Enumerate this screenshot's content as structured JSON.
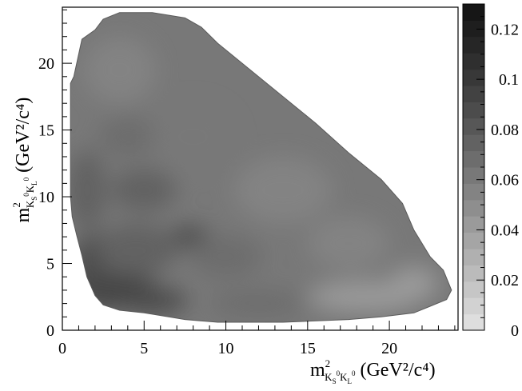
{
  "chart_data": {
    "type": "heatmap",
    "title": "",
    "xlabel": {
      "base": "m",
      "sup": "2",
      "sub1": "K",
      "sub1s": "S",
      "sub1sup": "0",
      "sub2": "K",
      "sub2s": "L",
      "sub2sup": "0",
      "unit": "(GeV²/c⁴)"
    },
    "ylabel": {
      "base": "m",
      "sup": "2",
      "sub1": "K",
      "sub1s": "S",
      "sub1sup": "0",
      "sub2": "K",
      "sub2s": "L",
      "sub2sup": "0",
      "unit": "(GeV²/c⁴)"
    },
    "xlim": [
      0,
      24.2
    ],
    "ylim": [
      0,
      24.2
    ],
    "x_ticks": [
      "0",
      "5",
      "10",
      "15",
      "20"
    ],
    "y_ticks": [
      "0",
      "5",
      "10",
      "15",
      "20"
    ],
    "colorbar": {
      "range": [
        0,
        0.13
      ],
      "ticks": [
        "0",
        "0.02",
        "0.04",
        "0.06",
        "0.08",
        "0.1",
        "0.12"
      ],
      "levels": 20,
      "colors": [
        "#dedede",
        "#d2d2d2",
        "#c6c6c6",
        "#bbbbbb",
        "#b0b0b0",
        "#a5a5a5",
        "#9a9a9a",
        "#8e8e8e",
        "#838383",
        "#787878",
        "#6d6d6d",
        "#626262",
        "#575757",
        "#4c4c4c",
        "#424242",
        "#383838",
        "#2f2f2f",
        "#262626",
        "#1e1e1e",
        "#161616"
      ]
    },
    "region": {
      "boundary_points": [
        [
          0.5,
          18.5
        ],
        [
          0.7,
          19.0
        ],
        [
          1.2,
          21.8
        ],
        [
          2.0,
          22.5
        ],
        [
          2.5,
          23.3
        ],
        [
          3.5,
          23.8
        ],
        [
          5.5,
          23.8
        ],
        [
          7.5,
          23.4
        ],
        [
          8.5,
          22.7
        ],
        [
          9.5,
          21.5
        ],
        [
          11.5,
          19.5
        ],
        [
          13.5,
          17.5
        ],
        [
          15.5,
          15.5
        ],
        [
          17.5,
          13.3
        ],
        [
          19.5,
          11.3
        ],
        [
          20.8,
          9.5
        ],
        [
          21.5,
          7.5
        ],
        [
          22.5,
          5.5
        ],
        [
          23.3,
          4.5
        ],
        [
          23.8,
          3.0
        ],
        [
          23.5,
          2.3
        ],
        [
          22.5,
          1.8
        ],
        [
          21.5,
          1.3
        ],
        [
          19.5,
          1.0
        ],
        [
          17.5,
          0.8
        ],
        [
          13.5,
          0.6
        ],
        [
          9.5,
          0.6
        ],
        [
          7.5,
          0.8
        ],
        [
          6.5,
          1.0
        ],
        [
          5.0,
          1.3
        ],
        [
          3.5,
          1.5
        ],
        [
          2.5,
          1.9
        ],
        [
          2.0,
          2.6
        ],
        [
          1.5,
          4.0
        ],
        [
          1.2,
          5.6
        ],
        [
          0.9,
          7.0
        ],
        [
          0.6,
          8.5
        ],
        [
          0.5,
          10.0
        ],
        [
          0.5,
          12.0
        ]
      ],
      "hotspots": [
        {
          "x": 3.0,
          "y": 3.2,
          "rx": 2.6,
          "ry": 1.6,
          "level": 0.095
        },
        {
          "x": 2.0,
          "y": 5.0,
          "rx": 1.4,
          "ry": 2.2,
          "level": 0.085
        },
        {
          "x": 5.5,
          "y": 2.2,
          "rx": 2.2,
          "ry": 1.0,
          "level": 0.085
        },
        {
          "x": 7.8,
          "y": 7.0,
          "rx": 1.2,
          "ry": 0.8,
          "level": 0.09
        },
        {
          "x": 4.5,
          "y": 6.0,
          "rx": 2.5,
          "ry": 2.0,
          "level": 0.075
        },
        {
          "x": 1.5,
          "y": 10.5,
          "rx": 1.2,
          "ry": 3.0,
          "level": 0.075
        },
        {
          "x": 5.0,
          "y": 10.5,
          "rx": 2.0,
          "ry": 1.6,
          "level": 0.072
        },
        {
          "x": 4.0,
          "y": 14.5,
          "rx": 1.8,
          "ry": 1.5,
          "level": 0.07
        },
        {
          "x": 10.0,
          "y": 5.5,
          "rx": 2.2,
          "ry": 1.6,
          "level": 0.07
        },
        {
          "x": 3.5,
          "y": 19.5,
          "rx": 2.2,
          "ry": 2.5,
          "level": 0.055
        },
        {
          "x": 8.0,
          "y": 14.5,
          "rx": 2.5,
          "ry": 2.5,
          "level": 0.06
        },
        {
          "x": 13.5,
          "y": 10.5,
          "rx": 3.0,
          "ry": 2.5,
          "level": 0.055
        },
        {
          "x": 17.5,
          "y": 6.5,
          "rx": 2.5,
          "ry": 2.0,
          "level": 0.055
        },
        {
          "x": 18.5,
          "y": 2.5,
          "rx": 3.5,
          "ry": 1.2,
          "level": 0.045
        },
        {
          "x": 21.5,
          "y": 3.5,
          "rx": 1.5,
          "ry": 1.3,
          "level": 0.04
        },
        {
          "x": 12.0,
          "y": 2.0,
          "rx": 3.0,
          "ry": 1.0,
          "level": 0.065
        }
      ]
    }
  }
}
